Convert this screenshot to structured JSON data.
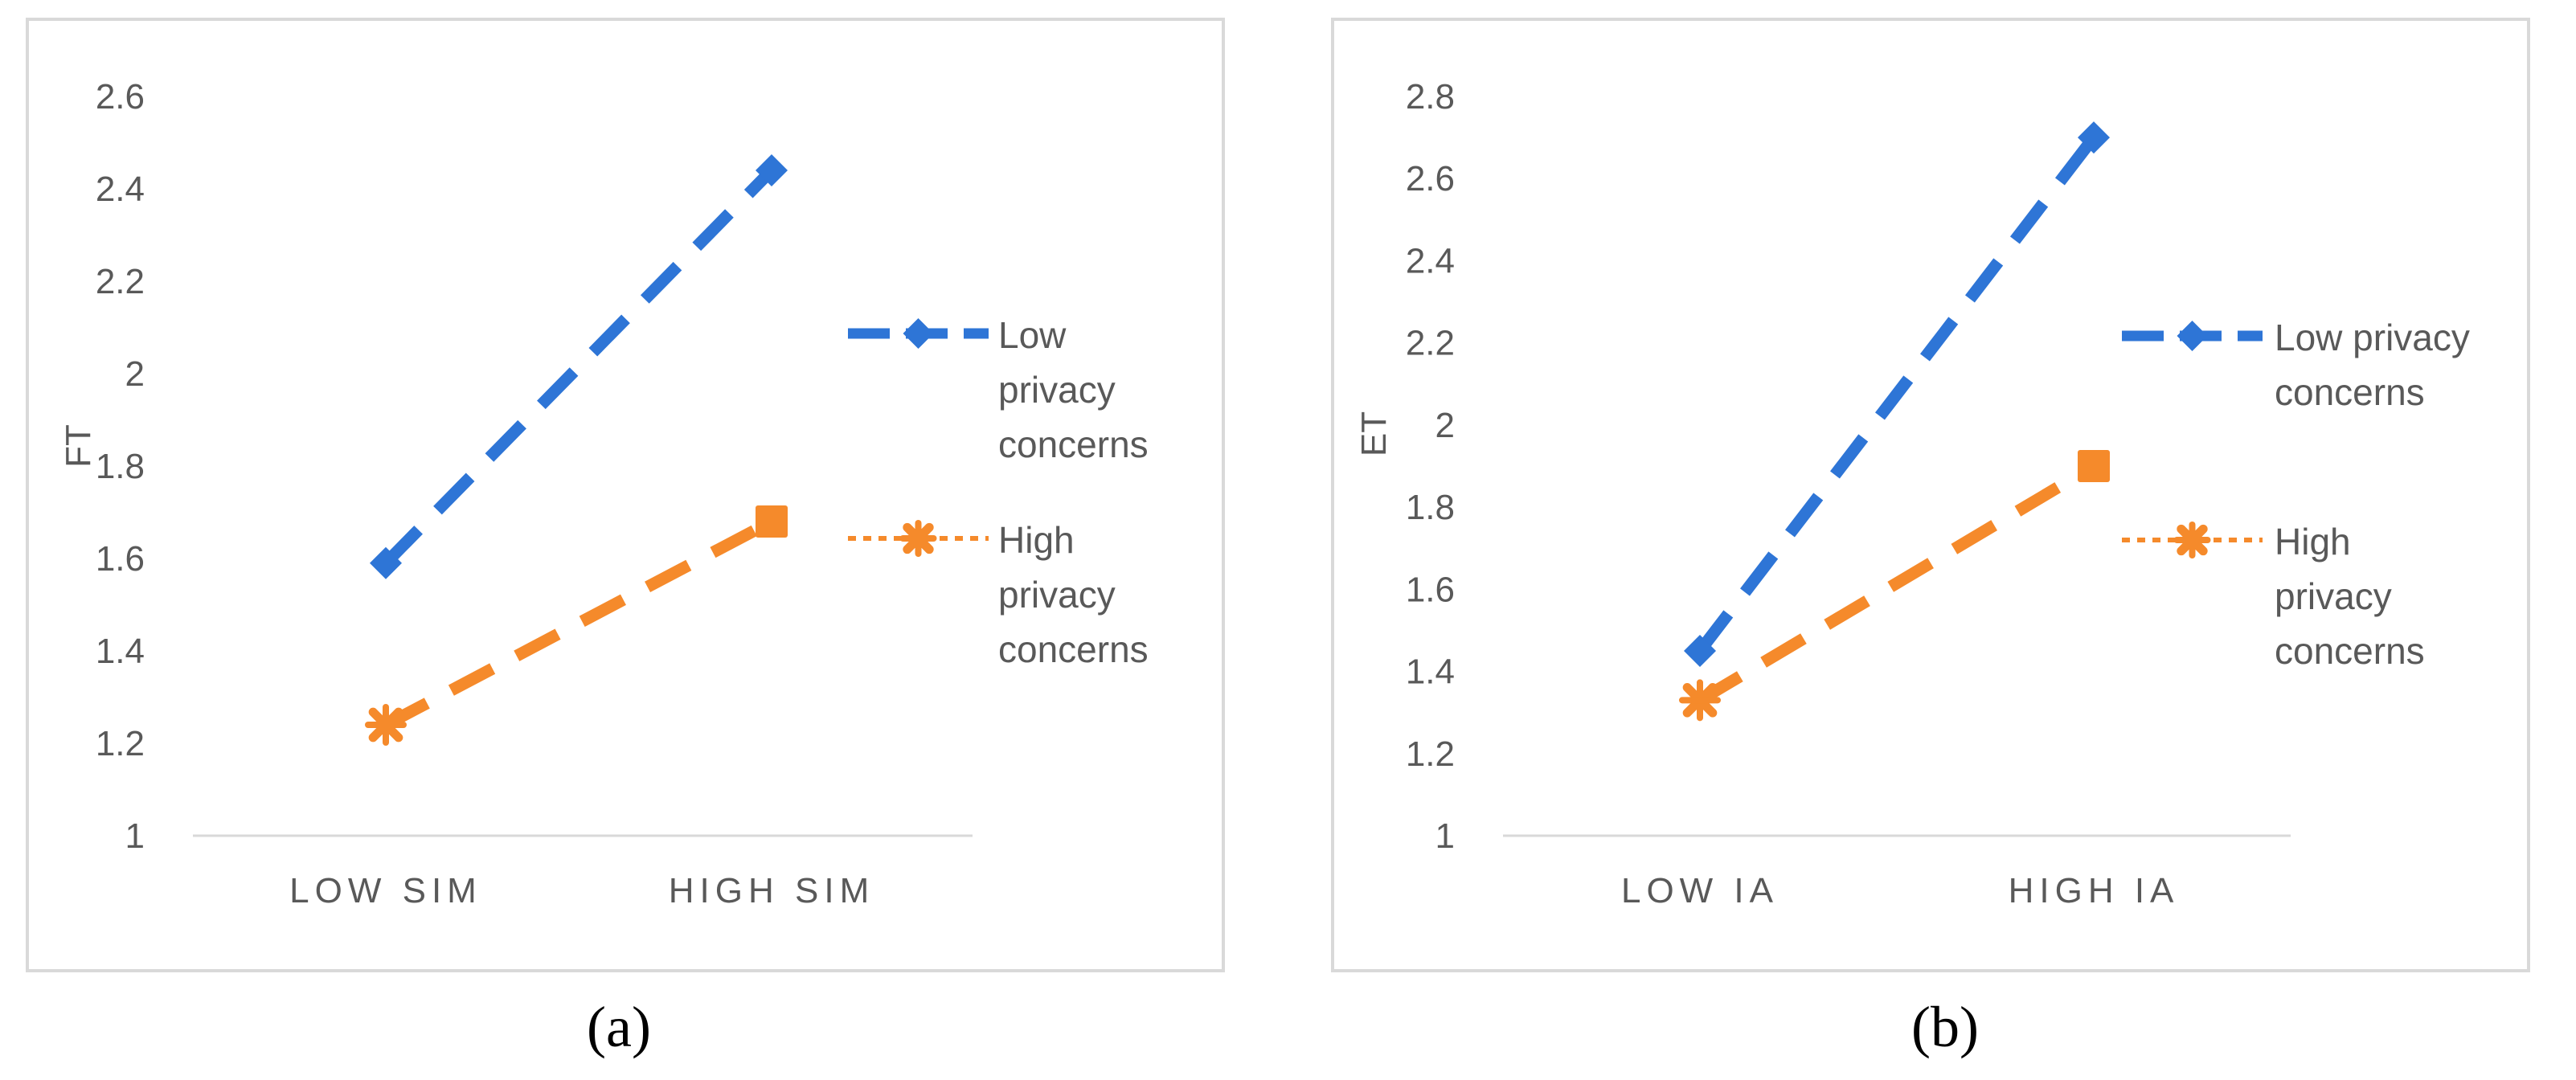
{
  "colors": {
    "low_series": "#2E75D6",
    "high_series": "#F58A2B",
    "panel_border": "#D9D9D9",
    "axis": "#D9D9D9",
    "text": "#595959"
  },
  "chart_data": [
    {
      "panel": "a",
      "caption": "(a)",
      "type": "line",
      "ylabel": "FT",
      "categories": [
        "LOW SIM",
        "HIGH SIM"
      ],
      "ylim": [
        1,
        2.6
      ],
      "ytick_labels": [
        "1",
        "1.2",
        "1.4",
        "1.6",
        "1.8",
        "2",
        "2.2",
        "2.4",
        "2.6"
      ],
      "series": [
        {
          "name": "Low privacy concerns",
          "legend_lines": [
            "Low",
            "privacy",
            "concerns"
          ],
          "values": [
            1.59,
            2.44
          ]
        },
        {
          "name": "High privacy concerns",
          "legend_lines": [
            "High",
            "privacy",
            "concerns"
          ],
          "values": [
            1.24,
            1.68
          ]
        }
      ]
    },
    {
      "panel": "b",
      "caption": "(b)",
      "type": "line",
      "ylabel": "ET",
      "categories": [
        "LOW IA",
        "HIGH IA"
      ],
      "ylim": [
        1,
        2.8
      ],
      "ytick_labels": [
        "1",
        "1.2",
        "1.4",
        "1.6",
        "1.8",
        "2",
        "2.2",
        "2.4",
        "2.6",
        "2.8"
      ],
      "series": [
        {
          "name": "Low privacy concerns",
          "legend_lines": [
            "Low privacy",
            "concerns"
          ],
          "values": [
            1.45,
            2.7
          ]
        },
        {
          "name": "High privacy concerns",
          "legend_lines": [
            "High",
            "privacy",
            "concerns"
          ],
          "values": [
            1.33,
            1.9
          ]
        }
      ]
    }
  ]
}
